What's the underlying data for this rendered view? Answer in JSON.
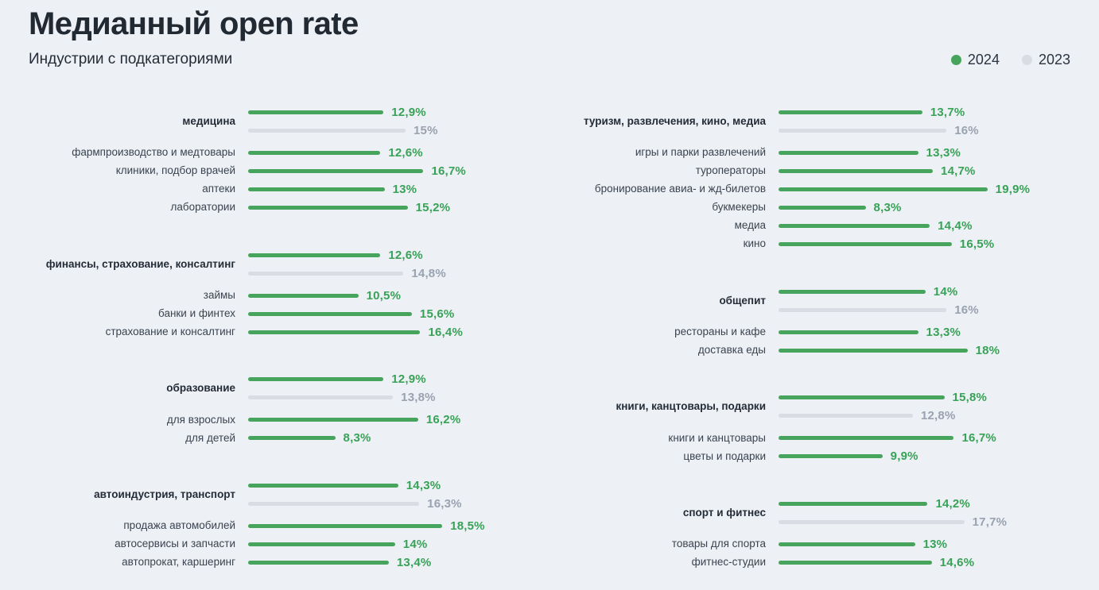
{
  "header": {
    "title": "Медианный open rate",
    "subtitle": "Индустрии с подкатегориями"
  },
  "legend": {
    "items": [
      {
        "label": "2024",
        "color": "#47a45c"
      },
      {
        "label": "2023",
        "color": "#d9dce2"
      }
    ]
  },
  "chart_data": {
    "type": "bar",
    "orientation": "horizontal",
    "title": "Медианный open rate",
    "subtitle": "Индустрии с подкатегориями",
    "unit": "%",
    "xlim": [
      0,
      20
    ],
    "series_names": [
      "2024",
      "2023"
    ],
    "colors": {
      "bar_2024": "#47a45c",
      "bar_2023": "#d9dce2",
      "value_2024": "#38a257",
      "value_2023": "#99a2b1",
      "background": "#edf0f5"
    },
    "columns": [
      {
        "groups": [
          {
            "name": "медицина",
            "values": {
              "y2024": 12.9,
              "y2023": 15
            },
            "labels": {
              "y2024": "12,9%",
              "y2023": "15%"
            },
            "subcategories": [
              {
                "name": "фармпроизводство и медтовары",
                "value": 12.6,
                "label": "12,6%"
              },
              {
                "name": "клиники, подбор врачей",
                "value": 16.7,
                "label": "16,7%"
              },
              {
                "name": "аптеки",
                "value": 13,
                "label": "13%"
              },
              {
                "name": "лаборатории",
                "value": 15.2,
                "label": "15,2%"
              }
            ]
          },
          {
            "name": "финансы, страхование, консалтинг",
            "values": {
              "y2024": 12.6,
              "y2023": 14.8
            },
            "labels": {
              "y2024": "12,6%",
              "y2023": "14,8%"
            },
            "subcategories": [
              {
                "name": "займы",
                "value": 10.5,
                "label": "10,5%"
              },
              {
                "name": "банки и финтех",
                "value": 15.6,
                "label": "15,6%"
              },
              {
                "name": "страхование и консалтинг",
                "value": 16.4,
                "label": "16,4%"
              }
            ]
          },
          {
            "name": "образование",
            "values": {
              "y2024": 12.9,
              "y2023": 13.8
            },
            "labels": {
              "y2024": "12,9%",
              "y2023": "13,8%"
            },
            "subcategories": [
              {
                "name": "для взрослых",
                "value": 16.2,
                "label": "16,2%"
              },
              {
                "name": "для детей",
                "value": 8.3,
                "label": "8,3%"
              }
            ]
          },
          {
            "name": "автоиндустрия, транспорт",
            "values": {
              "y2024": 14.3,
              "y2023": 16.3
            },
            "labels": {
              "y2024": "14,3%",
              "y2023": "16,3%"
            },
            "subcategories": [
              {
                "name": "продажа автомобилей",
                "value": 18.5,
                "label": "18,5%"
              },
              {
                "name": "автосервисы и запчасти",
                "value": 14,
                "label": "14%"
              },
              {
                "name": "автопрокат, каршеринг",
                "value": 13.4,
                "label": "13,4%"
              }
            ]
          }
        ]
      },
      {
        "groups": [
          {
            "name": "туризм, развлечения, кино, медиа",
            "values": {
              "y2024": 13.7,
              "y2023": 16
            },
            "labels": {
              "y2024": "13,7%",
              "y2023": "16%"
            },
            "subcategories": [
              {
                "name": "игры и парки развлечений",
                "value": 13.3,
                "label": "13,3%"
              },
              {
                "name": "туроператоры",
                "value": 14.7,
                "label": "14,7%"
              },
              {
                "name": "бронирование авиа- и жд-билетов",
                "value": 19.9,
                "label": "19,9%"
              },
              {
                "name": "букмекеры",
                "value": 8.3,
                "label": "8,3%"
              },
              {
                "name": "медиа",
                "value": 14.4,
                "label": "14,4%"
              },
              {
                "name": "кино",
                "value": 16.5,
                "label": "16,5%"
              }
            ]
          },
          {
            "name": "общепит",
            "values": {
              "y2024": 14,
              "y2023": 16
            },
            "labels": {
              "y2024": "14%",
              "y2023": "16%"
            },
            "subcategories": [
              {
                "name": "рестораны и кафе",
                "value": 13.3,
                "label": "13,3%"
              },
              {
                "name": "доставка еды",
                "value": 18,
                "label": "18%"
              }
            ]
          },
          {
            "name": "книги, канцтовары, подарки",
            "values": {
              "y2024": 15.8,
              "y2023": 12.8
            },
            "labels": {
              "y2024": "15,8%",
              "y2023": "12,8%"
            },
            "subcategories": [
              {
                "name": "книги и канцтовары",
                "value": 16.7,
                "label": "16,7%"
              },
              {
                "name": "цветы и подарки",
                "value": 9.9,
                "label": "9,9%"
              }
            ]
          },
          {
            "name": "спорт и фитнес",
            "values": {
              "y2024": 14.2,
              "y2023": 17.7
            },
            "labels": {
              "y2024": "14,2%",
              "y2023": "17,7%"
            },
            "subcategories": [
              {
                "name": "товары для спорта",
                "value": 13,
                "label": "13%"
              },
              {
                "name": "фитнес-студии",
                "value": 14.6,
                "label": "14,6%"
              }
            ]
          }
        ]
      }
    ]
  }
}
